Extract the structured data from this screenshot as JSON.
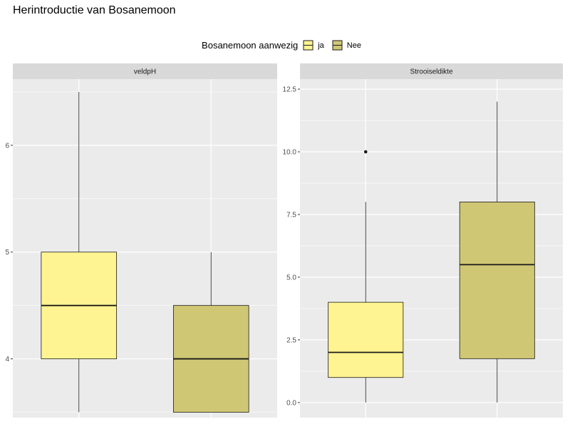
{
  "title": "Herintroductie van Bosanemoon",
  "legend": {
    "title": "Bosanemoon aanwezig",
    "items": [
      {
        "label": "ja",
        "color": "#fff491"
      },
      {
        "label": "Nee",
        "color": "#cfc774"
      }
    ]
  },
  "colors": {
    "panel_bg": "#ebebeb",
    "strip_bg": "#d9d9d9",
    "grid": "#ffffff",
    "box_stroke": "#1a1a1a"
  },
  "chart_data": [
    {
      "type": "boxplot",
      "facet": "veldpH",
      "ylim": [
        3.45,
        6.62
      ],
      "yticks": [
        4,
        5,
        6
      ],
      "ytick_labels": [
        "4",
        "5",
        "6"
      ],
      "groups": [
        {
          "name": "ja",
          "color": "#fff491",
          "whisker_low": 3.5,
          "q1": 4.0,
          "median": 4.5,
          "q3": 5.0,
          "whisker_high": 6.5,
          "outliers": []
        },
        {
          "name": "Nee",
          "color": "#cfc774",
          "whisker_low": 3.5,
          "q1": 3.5,
          "median": 4.0,
          "q3": 4.5,
          "whisker_high": 5.0,
          "outliers": []
        }
      ]
    },
    {
      "type": "boxplot",
      "facet": "Strooiseldikte",
      "ylim": [
        -0.6,
        12.9
      ],
      "yticks": [
        0,
        2.5,
        5,
        7.5,
        10,
        12.5
      ],
      "ytick_labels": [
        "0.0",
        "2.5",
        "5.0",
        "7.5",
        "10.0",
        "12.5"
      ],
      "groups": [
        {
          "name": "ja",
          "color": "#fff491",
          "whisker_low": 0,
          "q1": 1.0,
          "median": 2.0,
          "q3": 4.0,
          "whisker_high": 8.0,
          "outliers": [
            10
          ]
        },
        {
          "name": "Nee",
          "color": "#cfc774",
          "whisker_low": 0,
          "q1": 1.75,
          "median": 5.5,
          "q3": 8.0,
          "whisker_high": 12.0,
          "outliers": []
        }
      ]
    }
  ]
}
